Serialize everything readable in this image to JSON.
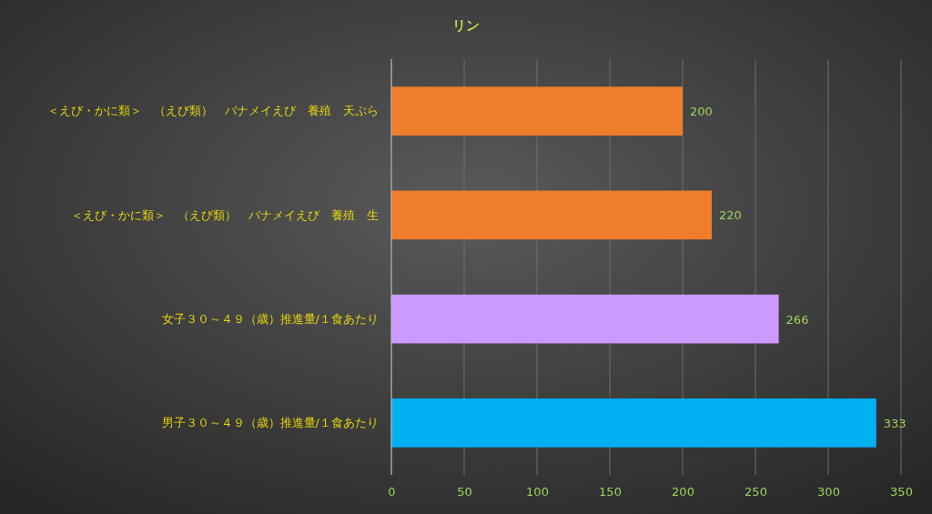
{
  "chart_data": {
    "type": "bar",
    "orientation": "horizontal",
    "title": "リン",
    "categories": [
      "＜えび・かに類＞　（えび類）　バナメイえび　養殖　天ぷら",
      "＜えび・かに類＞　（えび類）　バナメイえび　養殖　生",
      "女子３０～４９（歳）推進量/１食あたり",
      "男子３０～４９（歳）推進量/１食あたり"
    ],
    "values": [
      200,
      220,
      266,
      333
    ],
    "colors": [
      "#ef7d2a",
      "#ef7d2a",
      "#cc99ff",
      "#00b0f0"
    ],
    "xlim": [
      0,
      350
    ],
    "xticks": [
      0,
      50,
      100,
      150,
      200,
      250,
      300,
      350
    ],
    "grid": "x",
    "data_labels": true
  }
}
